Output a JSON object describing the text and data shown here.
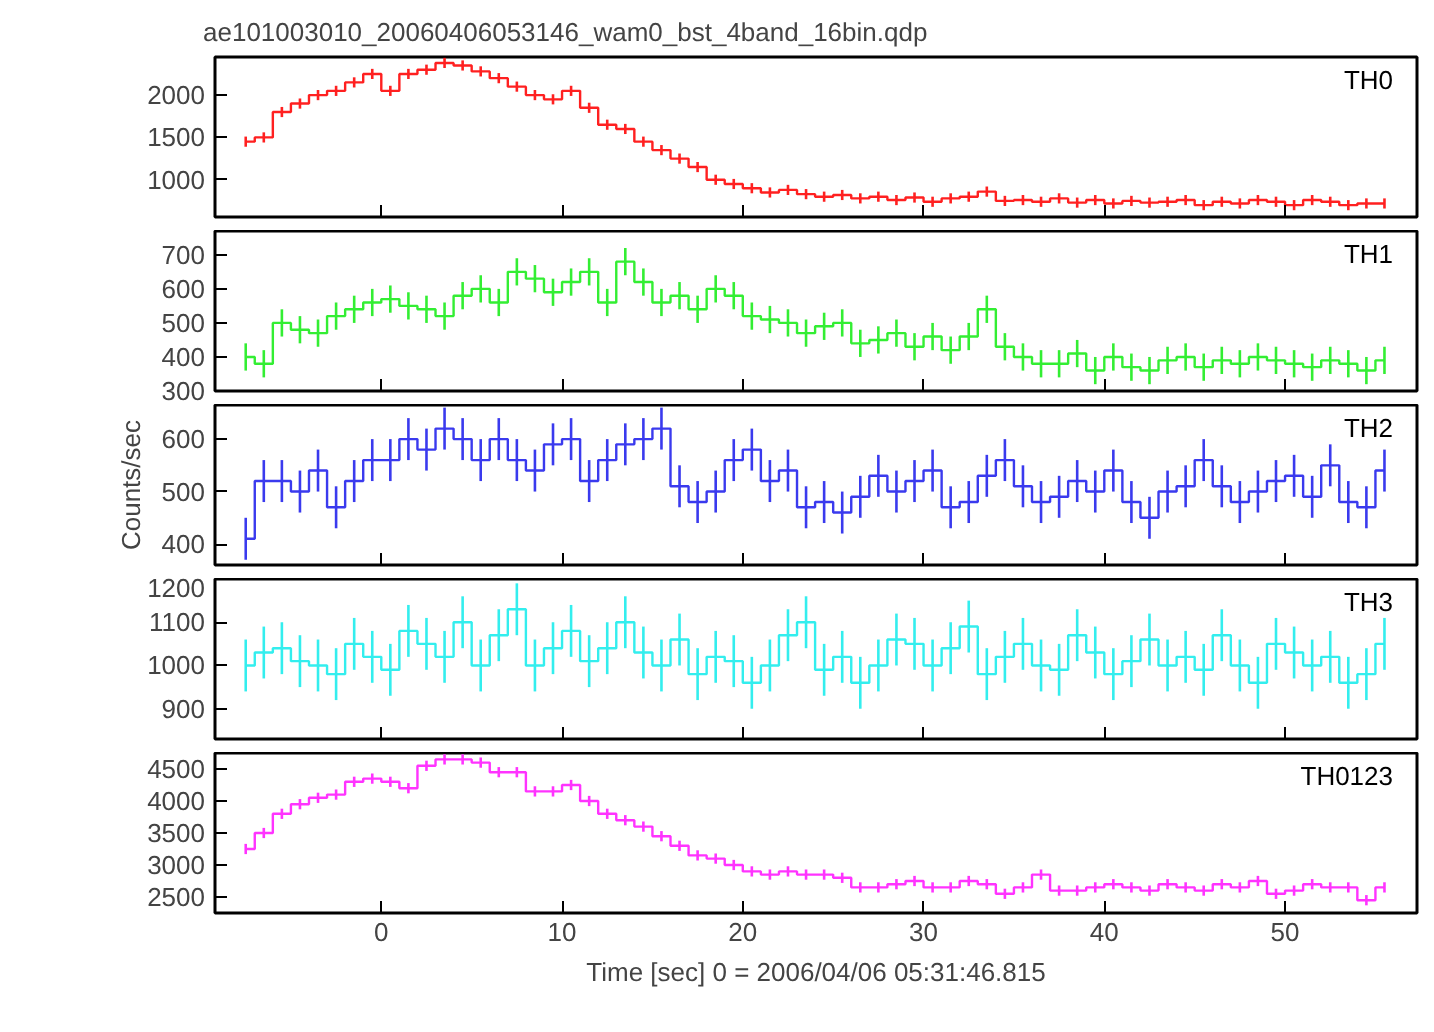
{
  "chart_data": [
    {
      "type": "step",
      "title": "ae101003010_20060406053146_wam0_bst_4band_16bin.qdp",
      "xlim": [
        -9.2,
        57.3
      ],
      "xticks": [
        0,
        10,
        20,
        30,
        40,
        50
      ],
      "ylim": [
        560,
        2450
      ],
      "yticks": [
        1000,
        1500,
        2000
      ],
      "tick_labels": "y",
      "grid": false,
      "x": [
        -7.5,
        -6.5,
        -5.5,
        -4.5,
        -3.5,
        -2.5,
        -1.5,
        -0.5,
        0.5,
        1.5,
        2.5,
        3.5,
        4.5,
        5.5,
        6.5,
        7.5,
        8.5,
        9.5,
        10.5,
        11.5,
        12.5,
        13.5,
        14.5,
        15.5,
        16.5,
        17.5,
        18.5,
        19.5,
        20.5,
        21.5,
        22.5,
        23.5,
        24.5,
        25.5,
        26.5,
        27.5,
        28.5,
        29.5,
        30.5,
        31.5,
        32.5,
        33.5,
        34.5,
        35.5,
        36.5,
        37.5,
        38.5,
        39.5,
        40.5,
        41.5,
        42.5,
        43.5,
        44.5,
        45.5,
        46.5,
        47.5,
        48.5,
        49.5,
        50.5,
        51.5,
        52.5,
        53.5,
        54.5,
        55.5
      ],
      "series": [
        {
          "name": "TH0",
          "color": "#ff2020",
          "values": [
            1450,
            1500,
            1800,
            1900,
            2000,
            2050,
            2150,
            2250,
            2050,
            2250,
            2300,
            2380,
            2350,
            2280,
            2200,
            2100,
            2000,
            1950,
            2050,
            1850,
            1650,
            1600,
            1450,
            1350,
            1250,
            1150,
            1000,
            950,
            900,
            850,
            880,
            830,
            800,
            820,
            780,
            800,
            760,
            790,
            740,
            780,
            800,
            860,
            750,
            760,
            740,
            780,
            730,
            760,
            720,
            750,
            730,
            740,
            760,
            700,
            740,
            720,
            760,
            740,
            700,
            760,
            740,
            700,
            720,
            720
          ],
          "errors": [
            60,
            60,
            60,
            60,
            60,
            60,
            60,
            60,
            60,
            60,
            60,
            60,
            60,
            60,
            60,
            60,
            60,
            60,
            60,
            60,
            60,
            60,
            60,
            60,
            60,
            60,
            60,
            60,
            60,
            60,
            60,
            60,
            60,
            60,
            60,
            60,
            60,
            60,
            60,
            60,
            60,
            60,
            60,
            60,
            60,
            60,
            60,
            60,
            60,
            60,
            60,
            60,
            60,
            60,
            60,
            60,
            60,
            60,
            60,
            60,
            60,
            60,
            60,
            60
          ]
        }
      ]
    },
    {
      "type": "step",
      "xlim": [
        -9.2,
        57.3
      ],
      "xticks": [
        0,
        10,
        20,
        30,
        40,
        50
      ],
      "ylim": [
        300,
        770
      ],
      "yticks": [
        300,
        400,
        500,
        600,
        700
      ],
      "tick_labels": "y",
      "grid": false,
      "x": [
        -7.5,
        -6.5,
        -5.5,
        -4.5,
        -3.5,
        -2.5,
        -1.5,
        -0.5,
        0.5,
        1.5,
        2.5,
        3.5,
        4.5,
        5.5,
        6.5,
        7.5,
        8.5,
        9.5,
        10.5,
        11.5,
        12.5,
        13.5,
        14.5,
        15.5,
        16.5,
        17.5,
        18.5,
        19.5,
        20.5,
        21.5,
        22.5,
        23.5,
        24.5,
        25.5,
        26.5,
        27.5,
        28.5,
        29.5,
        30.5,
        31.5,
        32.5,
        33.5,
        34.5,
        35.5,
        36.5,
        37.5,
        38.5,
        39.5,
        40.5,
        41.5,
        42.5,
        43.5,
        44.5,
        45.5,
        46.5,
        47.5,
        48.5,
        49.5,
        50.5,
        51.5,
        52.5,
        53.5,
        54.5,
        55.5
      ],
      "series": [
        {
          "name": "TH1",
          "color": "#33ee33",
          "values": [
            400,
            380,
            500,
            480,
            470,
            520,
            540,
            560,
            570,
            550,
            540,
            520,
            580,
            600,
            560,
            650,
            630,
            590,
            620,
            650,
            560,
            680,
            620,
            560,
            580,
            540,
            600,
            580,
            520,
            510,
            500,
            470,
            490,
            500,
            440,
            450,
            470,
            430,
            460,
            420,
            460,
            540,
            430,
            400,
            380,
            380,
            410,
            360,
            400,
            370,
            360,
            390,
            400,
            370,
            390,
            380,
            400,
            390,
            380,
            370,
            390,
            380,
            360,
            390
          ],
          "errors": [
            40,
            40,
            40,
            40,
            40,
            40,
            40,
            40,
            40,
            40,
            40,
            40,
            40,
            40,
            40,
            40,
            40,
            40,
            40,
            40,
            40,
            40,
            40,
            40,
            40,
            40,
            40,
            40,
            40,
            40,
            40,
            40,
            40,
            40,
            40,
            40,
            40,
            40,
            40,
            40,
            40,
            40,
            40,
            40,
            40,
            40,
            40,
            40,
            40,
            40,
            40,
            40,
            40,
            40,
            40,
            40,
            40,
            40,
            40,
            40,
            40,
            40,
            40,
            40
          ]
        }
      ]
    },
    {
      "type": "step",
      "ylabel": "Counts/sec",
      "xlim": [
        -9.2,
        57.3
      ],
      "xticks": [
        0,
        10,
        20,
        30,
        40,
        50
      ],
      "ylim": [
        360,
        665
      ],
      "yticks": [
        400,
        500,
        600
      ],
      "tick_labels": "y",
      "grid": false,
      "x": [
        -7.5,
        -6.5,
        -5.5,
        -4.5,
        -3.5,
        -2.5,
        -1.5,
        -0.5,
        0.5,
        1.5,
        2.5,
        3.5,
        4.5,
        5.5,
        6.5,
        7.5,
        8.5,
        9.5,
        10.5,
        11.5,
        12.5,
        13.5,
        14.5,
        15.5,
        16.5,
        17.5,
        18.5,
        19.5,
        20.5,
        21.5,
        22.5,
        23.5,
        24.5,
        25.5,
        26.5,
        27.5,
        28.5,
        29.5,
        30.5,
        31.5,
        32.5,
        33.5,
        34.5,
        35.5,
        36.5,
        37.5,
        38.5,
        39.5,
        40.5,
        41.5,
        42.5,
        43.5,
        44.5,
        45.5,
        46.5,
        47.5,
        48.5,
        49.5,
        50.5,
        51.5,
        52.5,
        53.5,
        54.5,
        55.5
      ],
      "series": [
        {
          "name": "TH2",
          "color": "#3a3aee",
          "values": [
            410,
            520,
            520,
            500,
            540,
            470,
            520,
            560,
            560,
            600,
            580,
            620,
            600,
            560,
            600,
            560,
            540,
            590,
            600,
            520,
            560,
            590,
            600,
            620,
            510,
            480,
            500,
            560,
            580,
            520,
            540,
            470,
            480,
            460,
            490,
            530,
            500,
            520,
            540,
            470,
            480,
            530,
            560,
            510,
            480,
            490,
            520,
            500,
            540,
            480,
            450,
            500,
            510,
            560,
            510,
            480,
            500,
            520,
            530,
            490,
            550,
            480,
            470,
            540
          ],
          "errors": [
            40,
            40,
            40,
            40,
            40,
            40,
            40,
            40,
            40,
            40,
            40,
            40,
            40,
            40,
            40,
            40,
            40,
            40,
            40,
            40,
            40,
            40,
            40,
            40,
            40,
            40,
            40,
            40,
            40,
            40,
            40,
            40,
            40,
            40,
            40,
            40,
            40,
            40,
            40,
            40,
            40,
            40,
            40,
            40,
            40,
            40,
            40,
            40,
            40,
            40,
            40,
            40,
            40,
            40,
            40,
            40,
            40,
            40,
            40,
            40,
            40,
            40,
            40,
            40
          ]
        }
      ]
    },
    {
      "type": "step",
      "xlim": [
        -9.2,
        57.3
      ],
      "xticks": [
        0,
        10,
        20,
        30,
        40,
        50
      ],
      "ylim": [
        830,
        1200
      ],
      "yticks": [
        900,
        1000,
        1100,
        1200
      ],
      "tick_labels": "y",
      "grid": false,
      "x": [
        -7.5,
        -6.5,
        -5.5,
        -4.5,
        -3.5,
        -2.5,
        -1.5,
        -0.5,
        0.5,
        1.5,
        2.5,
        3.5,
        4.5,
        5.5,
        6.5,
        7.5,
        8.5,
        9.5,
        10.5,
        11.5,
        12.5,
        13.5,
        14.5,
        15.5,
        16.5,
        17.5,
        18.5,
        19.5,
        20.5,
        21.5,
        22.5,
        23.5,
        24.5,
        25.5,
        26.5,
        27.5,
        28.5,
        29.5,
        30.5,
        31.5,
        32.5,
        33.5,
        34.5,
        35.5,
        36.5,
        37.5,
        38.5,
        39.5,
        40.5,
        41.5,
        42.5,
        43.5,
        44.5,
        45.5,
        46.5,
        47.5,
        48.5,
        49.5,
        50.5,
        51.5,
        52.5,
        53.5,
        54.5,
        55.5
      ],
      "series": [
        {
          "name": "TH3",
          "color": "#33eeee",
          "values": [
            1000,
            1030,
            1040,
            1010,
            1000,
            980,
            1050,
            1020,
            990,
            1080,
            1050,
            1020,
            1100,
            1000,
            1070,
            1130,
            1000,
            1040,
            1080,
            1010,
            1040,
            1100,
            1030,
            1000,
            1060,
            980,
            1020,
            1010,
            960,
            1000,
            1070,
            1100,
            990,
            1020,
            960,
            1000,
            1060,
            1050,
            1000,
            1040,
            1090,
            980,
            1020,
            1050,
            1000,
            990,
            1070,
            1030,
            980,
            1010,
            1060,
            1000,
            1020,
            990,
            1070,
            1000,
            960,
            1050,
            1030,
            1000,
            1020,
            960,
            980,
            1050
          ],
          "errors": [
            60,
            60,
            60,
            60,
            60,
            60,
            60,
            60,
            60,
            60,
            60,
            60,
            60,
            60,
            60,
            60,
            60,
            60,
            60,
            60,
            60,
            60,
            60,
            60,
            60,
            60,
            60,
            60,
            60,
            60,
            60,
            60,
            60,
            60,
            60,
            60,
            60,
            60,
            60,
            60,
            60,
            60,
            60,
            60,
            60,
            60,
            60,
            60,
            60,
            60,
            60,
            60,
            60,
            60,
            60,
            60,
            60,
            60,
            60,
            60,
            60,
            60,
            60,
            60
          ]
        }
      ]
    },
    {
      "type": "step",
      "xlabel": "Time [sec] 0 = 2006/04/06 05:31:46.815",
      "xlim": [
        -9.2,
        57.3
      ],
      "xticks": [
        0,
        10,
        20,
        30,
        40,
        50
      ],
      "ylim": [
        2250,
        4750
      ],
      "yticks": [
        2500,
        3000,
        3500,
        4000,
        4500
      ],
      "grid": false,
      "x": [
        -7.5,
        -6.5,
        -5.5,
        -4.5,
        -3.5,
        -2.5,
        -1.5,
        -0.5,
        0.5,
        1.5,
        2.5,
        3.5,
        4.5,
        5.5,
        6.5,
        7.5,
        8.5,
        9.5,
        10.5,
        11.5,
        12.5,
        13.5,
        14.5,
        15.5,
        16.5,
        17.5,
        18.5,
        19.5,
        20.5,
        21.5,
        22.5,
        23.5,
        24.5,
        25.5,
        26.5,
        27.5,
        28.5,
        29.5,
        30.5,
        31.5,
        32.5,
        33.5,
        34.5,
        35.5,
        36.5,
        37.5,
        38.5,
        39.5,
        40.5,
        41.5,
        42.5,
        43.5,
        44.5,
        45.5,
        46.5,
        47.5,
        48.5,
        49.5,
        50.5,
        51.5,
        52.5,
        53.5,
        54.5,
        55.5
      ],
      "series": [
        {
          "name": "TH0123",
          "color": "#ff33ff",
          "values": [
            3250,
            3500,
            3800,
            3950,
            4050,
            4100,
            4300,
            4350,
            4300,
            4200,
            4550,
            4650,
            4650,
            4600,
            4450,
            4450,
            4150,
            4150,
            4250,
            4000,
            3800,
            3700,
            3600,
            3450,
            3300,
            3150,
            3100,
            3000,
            2900,
            2850,
            2900,
            2850,
            2850,
            2800,
            2650,
            2650,
            2700,
            2750,
            2650,
            2650,
            2750,
            2700,
            2550,
            2650,
            2850,
            2600,
            2600,
            2650,
            2700,
            2650,
            2600,
            2700,
            2650,
            2600,
            2700,
            2650,
            2750,
            2550,
            2600,
            2700,
            2650,
            2650,
            2450,
            2650
          ],
          "errors": [
            80,
            80,
            80,
            80,
            80,
            80,
            80,
            80,
            80,
            80,
            80,
            80,
            80,
            80,
            80,
            80,
            80,
            80,
            80,
            80,
            80,
            80,
            80,
            80,
            80,
            80,
            80,
            80,
            80,
            80,
            80,
            80,
            80,
            80,
            80,
            80,
            80,
            80,
            80,
            80,
            80,
            80,
            80,
            80,
            80,
            80,
            80,
            80,
            80,
            80,
            80,
            80,
            80,
            80,
            80,
            80,
            80,
            80,
            80,
            80,
            80,
            80,
            80,
            80
          ]
        }
      ]
    }
  ]
}
